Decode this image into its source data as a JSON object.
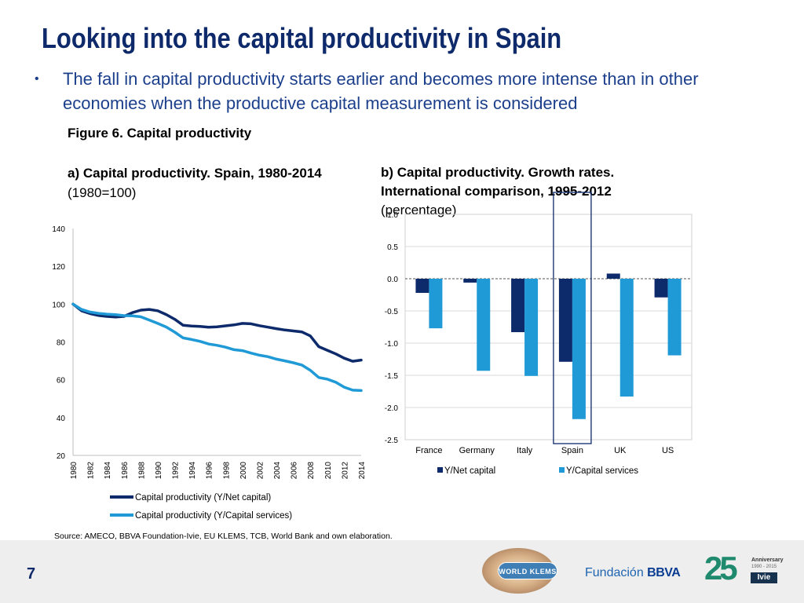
{
  "slide": {
    "title": "Looking into the capital productivity in Spain",
    "bullet": "•",
    "bullet_text": "The fall in capital productivity starts earlier and becomes more intense than in other economies when the productive capital measurement is considered",
    "figure_title": "Figure 6. Capital productivity",
    "subtitle_a_bold": "a) Capital productivity. Spain, 1980-2014",
    "subtitle_a_normal": "(1980=100)",
    "subtitle_b_line1": "b) Capital  productivity. Growth rates.",
    "subtitle_b_line2": "International comparison, 1995-2012",
    "subtitle_b_line3": "(percentage)",
    "source": "Source: AMECO, BBVA Foundation-Ivie, EU KLEMS, TCB, World Bank and own elaboration.",
    "page_number": "7"
  },
  "logos": {
    "world_klems": "WORLD KLEMS",
    "fundacion": "Fundación",
    "bbva": "BBVA",
    "ivie_25": "25",
    "ivie_anniversary": "Anniversary",
    "ivie_years": "1990 - 2015",
    "ivie": "Ivie"
  },
  "chart_data": [
    {
      "type": "line",
      "title": "a) Capital productivity. Spain, 1980-2014 (1980=100)",
      "x": [
        1980,
        1981,
        1982,
        1983,
        1984,
        1985,
        1986,
        1987,
        1988,
        1989,
        1990,
        1991,
        1992,
        1993,
        1994,
        1995,
        1996,
        1997,
        1998,
        1999,
        2000,
        2001,
        2002,
        2003,
        2004,
        2005,
        2006,
        2007,
        2008,
        2009,
        2010,
        2011,
        2012,
        2013,
        2014
      ],
      "x_tick_labels": [
        "1980",
        "1982",
        "1984",
        "1986",
        "1988",
        "1990",
        "1992",
        "1994",
        "1996",
        "1998",
        "2000",
        "2002",
        "2004",
        "2006",
        "2008",
        "2010",
        "2012",
        "2014"
      ],
      "y_tick_labels": [
        "20",
        "40",
        "60",
        "80",
        "100",
        "120",
        "140"
      ],
      "ylim": [
        20,
        140
      ],
      "series": [
        {
          "name": "Capital productivity (Y/Net capital)",
          "color": "#0d2a6b",
          "values": [
            100,
            96.5,
            95,
            94,
            93.5,
            93.2,
            93.5,
            95.5,
            96.8,
            97.2,
            96.5,
            94.5,
            92,
            88.8,
            88.4,
            88.2,
            87.8,
            88,
            88.5,
            89,
            89.8,
            89.6,
            88.6,
            87.8,
            87,
            86.3,
            85.8,
            85.3,
            83.2,
            77.5,
            75.6,
            73.7,
            71.4,
            69.8,
            70.4
          ]
        },
        {
          "name": "Capital productivity (Y/Capital services)",
          "color": "#1f9ad6",
          "values": [
            100,
            97.2,
            95.8,
            95.1,
            94.7,
            94.4,
            93.9,
            93.8,
            93.3,
            91.6,
            89.8,
            87.9,
            85.2,
            82.1,
            81.3,
            80.3,
            78.9,
            78.2,
            77.2,
            75.9,
            75.4,
            74.1,
            73,
            72.2,
            70.9,
            70,
            69,
            67.8,
            65,
            61.2,
            60.3,
            58.7,
            56.1,
            54.5,
            54.3
          ]
        }
      ]
    },
    {
      "type": "bar",
      "title": "b) Capital productivity. Growth rates. International comparison, 1995-2012 (percentage)",
      "categories": [
        "France",
        "Germany",
        "Italy",
        "Spain",
        "UK",
        "US"
      ],
      "y_tick_labels": [
        "1.0",
        "0.5",
        "0.0",
        "-0.5",
        "-1.0",
        "-1.5",
        "-2.0",
        "-2.5"
      ],
      "ylim": [
        -2.5,
        1.0
      ],
      "highlight": "Spain",
      "series": [
        {
          "name": "Y/Net capital",
          "color": "#0d2a6b",
          "values": [
            -0.22,
            -0.06,
            -0.83,
            -1.29,
            0.08,
            -0.29
          ]
        },
        {
          "name": "Y/Capital services",
          "color": "#1f9ad6",
          "values": [
            -0.77,
            -1.43,
            -1.51,
            -2.18,
            -1.83,
            -1.19
          ]
        }
      ]
    }
  ]
}
